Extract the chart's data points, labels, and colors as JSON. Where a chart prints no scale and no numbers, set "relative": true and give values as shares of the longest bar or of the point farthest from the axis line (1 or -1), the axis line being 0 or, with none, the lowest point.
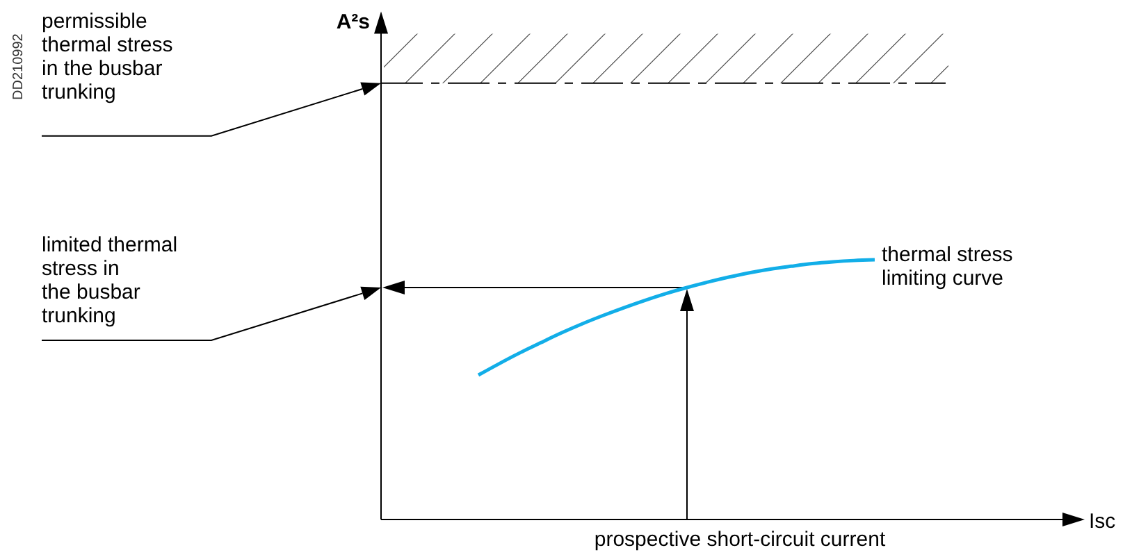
{
  "chart_data": {
    "type": "line",
    "relative": true,
    "xlabel": "Isc",
    "categories": [
      null,
      null,
      null,
      null,
      null,
      null,
      null,
      null,
      null,
      null,
      null,
      null,
      null,
      null,
      null,
      null,
      null,
      null,
      null,
      null,
      null,
      null,
      null,
      null,
      null,
      null,
      null,
      null,
      null,
      null,
      null,
      null,
      null
    ],
    "series": [
      {
        "name": "thermal stress\nlimiting curve",
        "color": "#12aee8",
        "values": [
          null,
          null,
          null,
          null,
          0.556,
          0.6,
          0.642,
          0.681,
          0.719,
          0.754,
          0.786,
          0.816,
          0.844,
          0.87,
          0.893,
          0.914,
          0.933,
          0.95,
          0.964,
          0.975,
          0.985,
          0.992,
          0.997,
          1.0,
          null,
          null,
          null,
          null,
          null,
          null,
          null,
          null,
          null
        ]
      }
    ],
    "ref_lines": [
      {
        "axis": "y",
        "value": 1.68,
        "line_style": "dashed",
        "color": "#000000"
      },
      {
        "axis": "y",
        "value": 0.893,
        "color": "#000000"
      }
    ],
    "bands": [
      {
        "axis": "y",
        "from": 1.68,
        "to": 1.87,
        "color": "#000000"
      }
    ],
    "annotations": [
      "permissible\nthermal stress\nin the busbar\ntrunking",
      "limited thermal\nstress in\nthe busbar\ntrunking",
      "prospective short-circuit current",
      "DD210992",
      "A²s"
    ],
    "legend": false,
    "marker": "none",
    "line_style": "solid"
  }
}
